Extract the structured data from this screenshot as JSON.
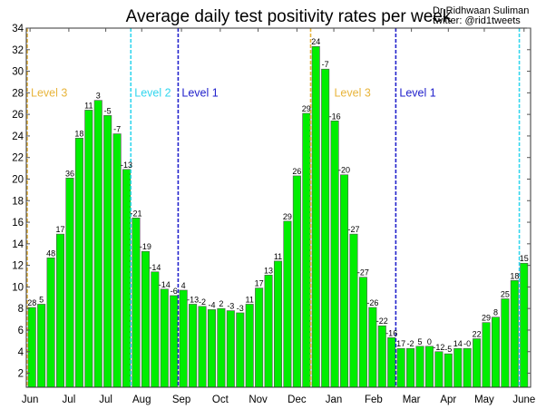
{
  "chart_data": {
    "type": "bar",
    "title": "Average daily test positivity rates per week",
    "credit": [
      "Dr Ridhwaan Suliman",
      "twitter: @rid1tweets"
    ],
    "xlabel": "",
    "ylabel": "",
    "ylim": [
      0.7,
      34
    ],
    "yticks": [
      2,
      4,
      6,
      8,
      10,
      12,
      14,
      16,
      18,
      20,
      22,
      24,
      26,
      28,
      30,
      32,
      34
    ],
    "grid": false,
    "bar_color": "#00ee00",
    "values": [
      8.1,
      8.4,
      12.7,
      14.9,
      20.1,
      23.8,
      26.4,
      27.3,
      25.9,
      24.2,
      20.9,
      16.4,
      13.3,
      11.4,
      9.8,
      9.2,
      9.7,
      8.4,
      8.2,
      7.9,
      8.0,
      7.8,
      7.6,
      8.4,
      9.9,
      11.1,
      12.4,
      16.1,
      20.3,
      26.1,
      32.3,
      30.2,
      25.4,
      20.4,
      14.9,
      10.9,
      8.1,
      6.4,
      5.3,
      4.3,
      4.3,
      4.5,
      4.5,
      4.0,
      3.8,
      4.3,
      4.3,
      5.2,
      6.7,
      7.2,
      8.9,
      10.6,
      12.2
    ],
    "bar_labels": [
      "28",
      "5",
      "48",
      "17",
      "36",
      "18",
      "11",
      "3",
      "-5",
      "-7",
      "-13",
      "-21",
      "-19",
      "-14",
      "-14",
      "-6",
      "4",
      "-13",
      "-2",
      "-4",
      "2",
      "-3",
      "-3",
      "11",
      "17",
      "13",
      "11",
      "29",
      "26",
      "29",
      "24",
      "-7",
      "-16",
      "-20",
      "-27",
      "-27",
      "-26",
      "-22",
      "-16",
      "17",
      "-2",
      "5",
      "0",
      "-12",
      "-5",
      "14",
      "-0",
      "22",
      "29",
      "8",
      "25",
      "18",
      "15"
    ],
    "xtick_labels": [
      {
        "label": "Jun",
        "at_bar": 0.3
      },
      {
        "label": "Jul",
        "at_bar": 4.4
      },
      {
        "label": "Jul",
        "at_bar": 8.3
      },
      {
        "label": "Aug",
        "at_bar": 12.1
      },
      {
        "label": "Sep",
        "at_bar": 16.3
      },
      {
        "label": "Oct",
        "at_bar": 20.4
      },
      {
        "label": "Nov",
        "at_bar": 24.4
      },
      {
        "label": "Dec",
        "at_bar": 28.5
      },
      {
        "label": "Jan",
        "at_bar": 32.4
      },
      {
        "label": "Feb",
        "at_bar": 36.6
      },
      {
        "label": "Mar",
        "at_bar": 40.6
      },
      {
        "label": "Apr",
        "at_bar": 44.5
      },
      {
        "label": "May",
        "at_bar": 48.3
      },
      {
        "label": "June",
        "at_bar": 52.5
      }
    ],
    "level_lines": [
      {
        "label": "Level 3",
        "at_bar": 0,
        "color": "#e8b53c"
      },
      {
        "label": "Level 2",
        "at_bar": 10.95,
        "color": "#33d6ee"
      },
      {
        "label": "Level 1",
        "at_bar": 15.95,
        "color": "#2222cc"
      },
      {
        "label": "Level 3",
        "at_bar": 29.95,
        "color": "#e8b53c"
      },
      {
        "label": "Level 1",
        "at_bar": 38.95,
        "color": "#2222cc"
      },
      {
        "label": "",
        "at_bar": 52.0,
        "color": "#33d6ee"
      }
    ],
    "level_label_value": 28
  }
}
